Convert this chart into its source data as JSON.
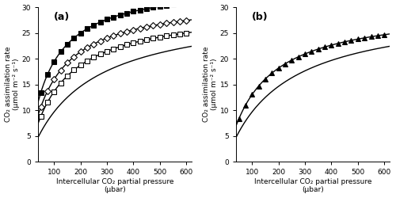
{
  "panel_a_label": "(a)",
  "panel_b_label": "(b)",
  "xlabel": "Intercellular CO₂ partial pressure\n(μbar)",
  "ylabel": "CO₂ assimilation rate\n(μmol m⁻² s⁻¹)",
  "xlim": [
    40,
    620
  ],
  "ylim": [
    0,
    30
  ],
  "xticks": [
    100,
    200,
    300,
    400,
    500,
    600
  ],
  "yticks": [
    0,
    5,
    10,
    15,
    20,
    25,
    30
  ],
  "background_color": "#ffffff",
  "curves_a": [
    {
      "Vmax": 35.0,
      "Km": 80.0,
      "label": "filled_square",
      "marker": "s",
      "filled": true,
      "color": "#000000"
    },
    {
      "Vmax": 32.0,
      "Km": 100.0,
      "label": "open_diamond",
      "marker": "D",
      "filled": false,
      "color": "#000000"
    },
    {
      "Vmax": 30.0,
      "Km": 120.0,
      "label": "open_square",
      "marker": "s",
      "filled": false,
      "color": "#000000"
    },
    {
      "Vmax": 30.0,
      "Km": 210.0,
      "label": "plain_line",
      "marker": null,
      "filled": false,
      "color": "#000000"
    }
  ],
  "curves_b": [
    {
      "Vmax": 30.0,
      "Km": 130.0,
      "label": "filled_triangle",
      "marker": "^",
      "filled": true,
      "color": "#000000"
    },
    {
      "Vmax": 30.0,
      "Km": 210.0,
      "label": "plain_line",
      "marker": null,
      "filled": false,
      "color": "#000000"
    }
  ],
  "markersize": 4.5,
  "linewidth": 1.0,
  "fontsize_label": 6.5,
  "fontsize_tick": 6.5,
  "fontsize_panel": 9
}
